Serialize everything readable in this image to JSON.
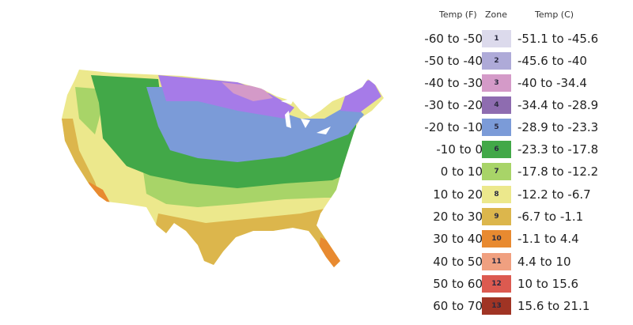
{
  "legend": {
    "headers": {
      "temp_f": "Temp (F)",
      "zone": "Zone",
      "temp_c": "Temp (C)"
    },
    "zones": [
      {
        "zone": "1",
        "temp_f": "-60 to -50",
        "temp_c": "-51.1 to -45.6",
        "color": "#dcdaec"
      },
      {
        "zone": "2",
        "temp_f": "-50 to -40",
        "temp_c": "-45.6 to -40",
        "color": "#aeaad8"
      },
      {
        "zone": "3",
        "temp_f": "-40 to -30",
        "temp_c": "-40 to -34.4",
        "color": "#d49ac8"
      },
      {
        "zone": "4",
        "temp_f": "-30 to -20",
        "temp_c": "-34.4 to -28.9",
        "color": "#8e6cb0"
      },
      {
        "zone": "5",
        "temp_f": "-20 to -10",
        "temp_c": "-28.9 to -23.3",
        "color": "#7b9bd8"
      },
      {
        "zone": "6",
        "temp_f": "-10 to 0",
        "temp_c": "-23.3 to -17.8",
        "color": "#42a848"
      },
      {
        "zone": "7",
        "temp_f": "0 to 10",
        "temp_c": "-17.8 to -12.2",
        "color": "#a8d468"
      },
      {
        "zone": "8",
        "temp_f": "10 to 20",
        "temp_c": "-12.2 to -6.7",
        "color": "#ece88c"
      },
      {
        "zone": "9",
        "temp_f": "20 to 30",
        "temp_c": "-6.7 to -1.1",
        "color": "#dcb64c"
      },
      {
        "zone": "10",
        "temp_f": "30 to 40",
        "temp_c": "-1.1 to 4.4",
        "color": "#e88a30"
      },
      {
        "zone": "11",
        "temp_f": "40 to 50",
        "temp_c": "4.4 to 10",
        "color": "#f0a080"
      },
      {
        "zone": "12",
        "temp_f": "50 to 60",
        "temp_c": "10 to 15.6",
        "color": "#dc5a50"
      },
      {
        "zone": "13",
        "temp_f": "60 to 70",
        "temp_c": "15.6 to 21.1",
        "color": "#a03424"
      }
    ]
  }
}
